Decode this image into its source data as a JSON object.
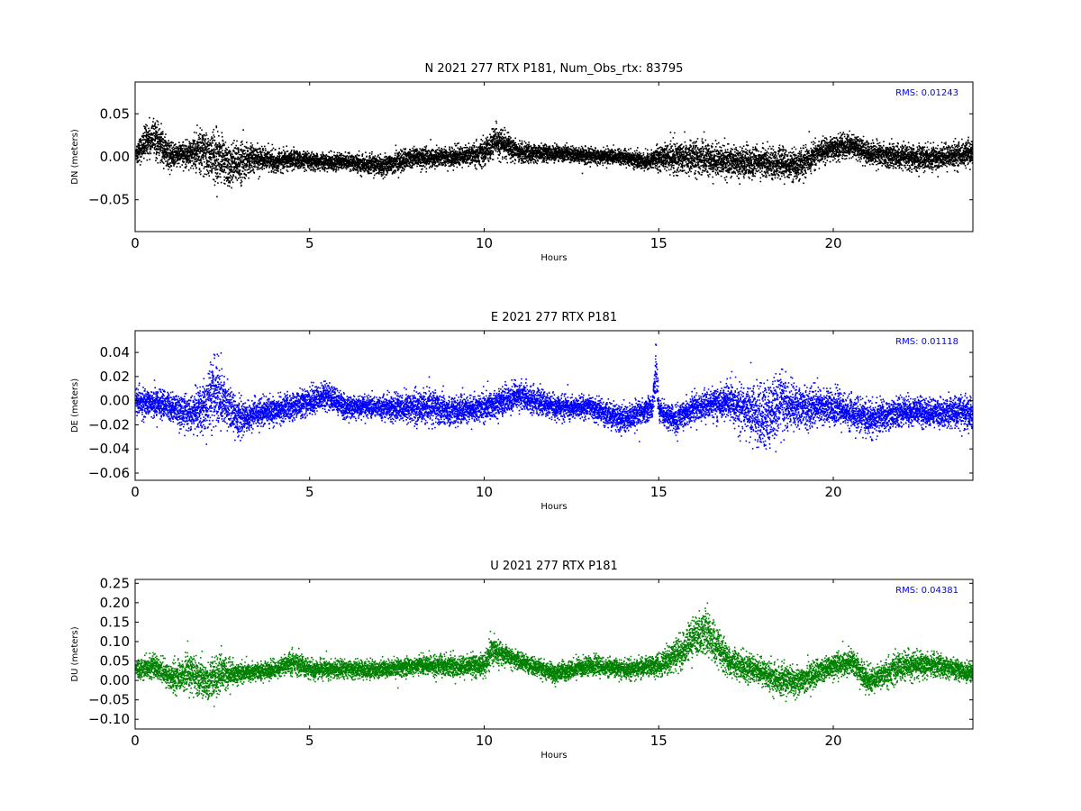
{
  "chart_data": [
    {
      "type": "scatter",
      "title": "N 2021 277 RTX  P181, Num_Obs_rtx: 83795",
      "xlabel": "Hours",
      "ylabel": "DN (meters)",
      "xlim": [
        0,
        24
      ],
      "ylim": [
        -0.087,
        0.087
      ],
      "xticks": [
        "0",
        "5",
        "10",
        "15",
        "20"
      ],
      "xtick_values": [
        0,
        5,
        10,
        15,
        20
      ],
      "yticks": [
        "−0.05",
        "0.00",
        "0.05"
      ],
      "ytick_values": [
        -0.05,
        0.0,
        0.05
      ],
      "color": "#000000",
      "annotation": "RMS:  0.01243",
      "annotation_color": "#0000ff",
      "grid": false,
      "series": [
        {
          "x": [
            0,
            0.5,
            1,
            1.5,
            2,
            2.3,
            2.7,
            3,
            3.5,
            4,
            4.5,
            5,
            6,
            7,
            8,
            9,
            10,
            10.3,
            11,
            12,
            13,
            14,
            14.7,
            15,
            16,
            17,
            18,
            19,
            19.5,
            20,
            20.5,
            21,
            22,
            23,
            24
          ],
          "y": [
            0.005,
            0.025,
            0.002,
            0.005,
            0.005,
            0.0,
            -0.01,
            -0.005,
            0.0,
            -0.005,
            -0.002,
            -0.005,
            -0.005,
            -0.01,
            0.0,
            0.0,
            0.005,
            0.02,
            0.005,
            0.005,
            0.002,
            0.0,
            -0.005,
            0.0,
            0.0,
            -0.005,
            -0.005,
            -0.01,
            0.005,
            0.01,
            0.015,
            0.005,
            0.0,
            0.0,
            0.005
          ],
          "spread": [
            0.012,
            0.02,
            0.012,
            0.012,
            0.025,
            0.028,
            0.022,
            0.02,
            0.012,
            0.01,
            0.01,
            0.008,
            0.008,
            0.01,
            0.01,
            0.01,
            0.012,
            0.015,
            0.01,
            0.008,
            0.008,
            0.008,
            0.01,
            0.012,
            0.018,
            0.015,
            0.015,
            0.015,
            0.012,
            0.012,
            0.012,
            0.012,
            0.012,
            0.012,
            0.012
          ]
        }
      ]
    },
    {
      "type": "scatter",
      "title": "E 2021 277 RTX  P181",
      "xlabel": "Hours",
      "ylabel": "DE (meters)",
      "xlim": [
        0,
        24
      ],
      "ylim": [
        -0.066,
        0.058
      ],
      "xticks": [
        "0",
        "5",
        "10",
        "15",
        "20"
      ],
      "xtick_values": [
        0,
        5,
        10,
        15,
        20
      ],
      "yticks": [
        "−0.06",
        "−0.04",
        "−0.02",
        "0.00",
        "0.02",
        "0.04"
      ],
      "ytick_values": [
        -0.06,
        -0.04,
        -0.02,
        0.0,
        0.02,
        0.04
      ],
      "color": "#0000ff",
      "annotation": "RMS:  0.01118",
      "annotation_color": "#0000ff",
      "grid": false,
      "series": [
        {
          "x": [
            0,
            0.5,
            1,
            1.5,
            2,
            2.2,
            2.5,
            3,
            3.5,
            4,
            5,
            5.5,
            6,
            7,
            8,
            8.5,
            9,
            10,
            11,
            12,
            13,
            14,
            14.8,
            14.9,
            15,
            15.5,
            16,
            17,
            17.5,
            18,
            18.5,
            19,
            20,
            21,
            22,
            23,
            24
          ],
          "y": [
            0.0,
            -0.002,
            -0.005,
            -0.01,
            -0.005,
            0.01,
            0.0,
            -0.015,
            -0.01,
            -0.008,
            0.0,
            0.005,
            -0.005,
            -0.005,
            -0.005,
            -0.005,
            -0.008,
            -0.005,
            0.005,
            -0.005,
            -0.005,
            -0.015,
            -0.005,
            0.03,
            -0.01,
            -0.015,
            -0.005,
            0.0,
            -0.008,
            -0.015,
            0.0,
            -0.005,
            -0.005,
            -0.015,
            -0.008,
            -0.01,
            -0.01
          ],
          "spread": [
            0.01,
            0.01,
            0.01,
            0.012,
            0.02,
            0.025,
            0.02,
            0.012,
            0.01,
            0.01,
            0.01,
            0.01,
            0.008,
            0.008,
            0.012,
            0.012,
            0.01,
            0.01,
            0.01,
            0.008,
            0.008,
            0.01,
            0.008,
            0.02,
            0.008,
            0.01,
            0.01,
            0.012,
            0.02,
            0.025,
            0.02,
            0.015,
            0.012,
            0.012,
            0.01,
            0.01,
            0.012
          ]
        }
      ]
    },
    {
      "type": "scatter",
      "title": "U 2021 277 RTX  P181",
      "xlabel": "Hours",
      "ylabel": "DU (meters)",
      "xlim": [
        0,
        24
      ],
      "ylim": [
        -0.125,
        0.26
      ],
      "xticks": [
        "0",
        "5",
        "10",
        "15",
        "20"
      ],
      "xtick_values": [
        0,
        5,
        10,
        15,
        20
      ],
      "yticks": [
        "−0.10",
        "−0.05",
        "0.00",
        "0.05",
        "0.10",
        "0.15",
        "0.20",
        "0.25"
      ],
      "ytick_values": [
        -0.1,
        -0.05,
        0.0,
        0.05,
        0.1,
        0.15,
        0.2,
        0.25
      ],
      "color": "#008000",
      "annotation": "RMS:  0.04381",
      "annotation_color": "#0000ff",
      "grid": false,
      "series": [
        {
          "x": [
            0,
            0.5,
            1,
            1.5,
            2,
            2.5,
            3,
            4,
            4.5,
            5,
            6,
            7,
            8,
            9,
            10,
            10.2,
            11,
            12,
            13,
            14,
            15,
            15.5,
            16,
            16.3,
            16.7,
            17,
            18,
            18.5,
            19,
            20,
            20.5,
            21,
            22,
            23,
            24
          ],
          "y": [
            0.03,
            0.04,
            0.01,
            0.02,
            0.0,
            0.02,
            0.02,
            0.03,
            0.05,
            0.03,
            0.03,
            0.03,
            0.04,
            0.04,
            0.04,
            0.08,
            0.05,
            0.02,
            0.04,
            0.03,
            0.04,
            0.07,
            0.11,
            0.13,
            0.08,
            0.05,
            0.02,
            0.0,
            0.0,
            0.04,
            0.05,
            0.0,
            0.04,
            0.04,
            0.02
          ],
          "spread": [
            0.02,
            0.025,
            0.03,
            0.04,
            0.04,
            0.04,
            0.02,
            0.02,
            0.025,
            0.02,
            0.02,
            0.02,
            0.02,
            0.025,
            0.025,
            0.03,
            0.02,
            0.02,
            0.02,
            0.02,
            0.025,
            0.035,
            0.045,
            0.05,
            0.04,
            0.03,
            0.03,
            0.035,
            0.03,
            0.025,
            0.03,
            0.03,
            0.03,
            0.025,
            0.02
          ]
        }
      ]
    }
  ]
}
